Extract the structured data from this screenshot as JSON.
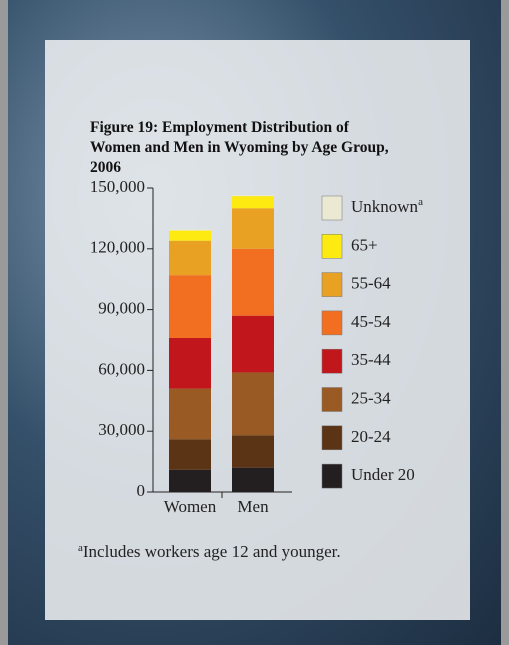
{
  "chart_data": {
    "type": "stacked-bar",
    "title": "Figure 19: Employment Distribution of Women and Men in Wyoming by Age Group, 2006",
    "categories": [
      "Women",
      "Men"
    ],
    "series": [
      {
        "name": "Under 20",
        "color": "#231f20",
        "values": [
          11000,
          12000
        ]
      },
      {
        "name": "20-24",
        "color": "#5a3415",
        "values": [
          15000,
          16000
        ]
      },
      {
        "name": "25-34",
        "color": "#9a5a24",
        "values": [
          25000,
          31000
        ]
      },
      {
        "name": "35-44",
        "color": "#c0161c",
        "values": [
          25000,
          28000
        ]
      },
      {
        "name": "45-54",
        "color": "#f26f21",
        "values": [
          31000,
          33000
        ]
      },
      {
        "name": "55-64",
        "color": "#e9a123",
        "values": [
          17000,
          20000
        ]
      },
      {
        "name": "65+",
        "color": "#fcea10",
        "values": [
          5000,
          6000
        ]
      },
      {
        "name": "Unknown",
        "color": "#ece9d3",
        "values": [
          500,
          500
        ],
        "note_marker": "a"
      }
    ],
    "ylim": [
      0,
      150000
    ],
    "yticks": [
      0,
      {
        "value": 30000,
        "label": "30,000"
      },
      {
        "value": 60000,
        "label": "60,000"
      },
      {
        "value": 90000,
        "label": "90,000"
      },
      {
        "value": 120000,
        "label": "120,000"
      },
      {
        "value": 150000,
        "label": "150,000"
      }
    ],
    "footnote": {
      "marker": "a",
      "text": "Includes workers age 12 and younger."
    }
  }
}
